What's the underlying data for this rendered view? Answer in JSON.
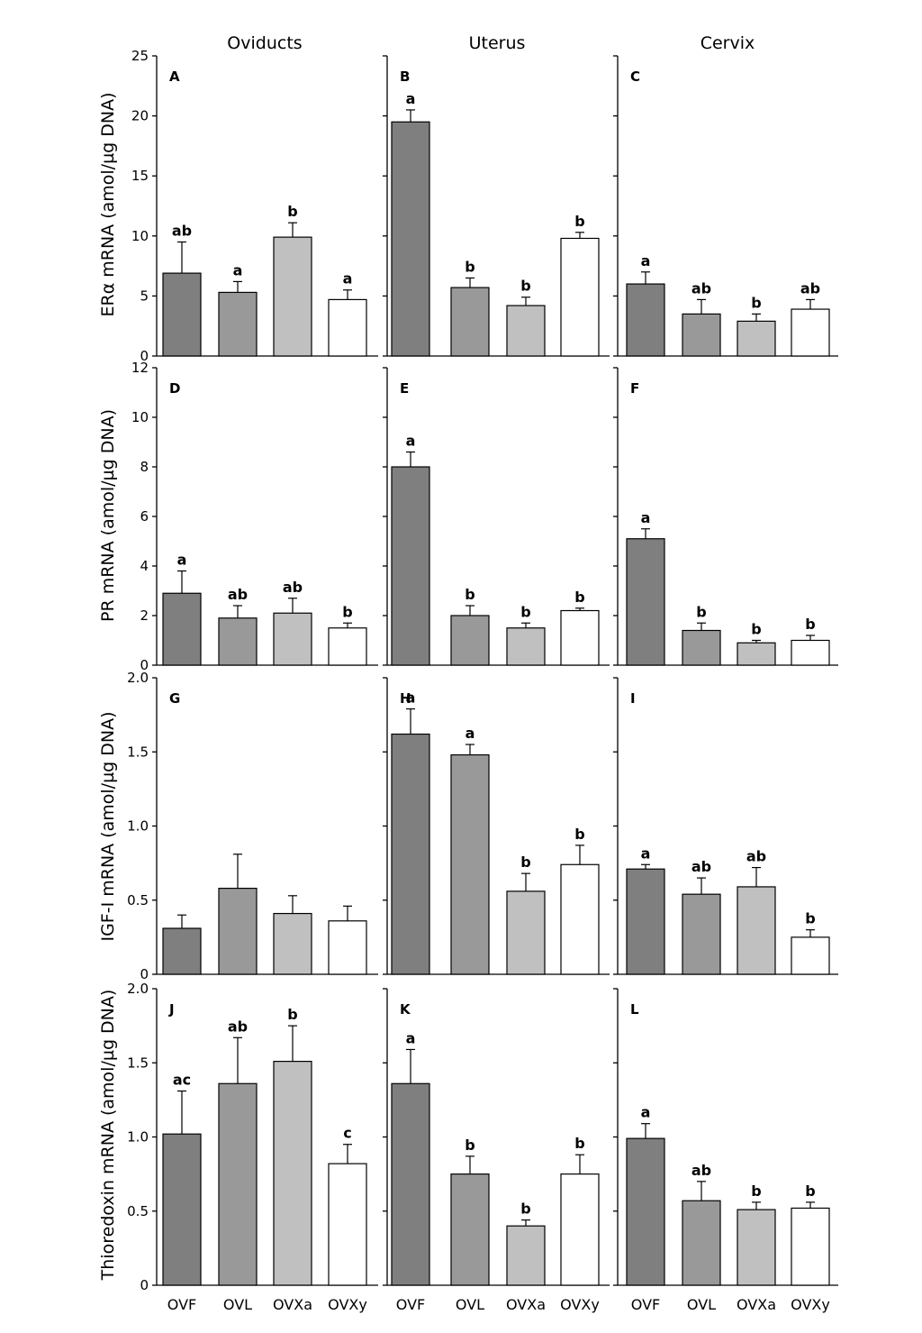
{
  "columns": [
    "Oviducts",
    "Uterus",
    "Cervix"
  ],
  "group_colors": [
    "#7f7f7f",
    "#999999",
    "#c0c0c0",
    "#ffffff"
  ],
  "chart_data": [
    {
      "type": "bar",
      "row_label": "ERα mRNA (amol/µg DNA)",
      "ylim": [
        0,
        25
      ],
      "yticks": [
        "0",
        "5",
        "10",
        "15",
        "20",
        "25"
      ],
      "ytick_values": [
        0,
        5,
        10,
        15,
        20,
        25
      ],
      "categories": [
        "OVF",
        "OVL",
        "OVXa",
        "OVXy"
      ],
      "panels": [
        {
          "panel": "A",
          "column": "Oviducts",
          "values": [
            6.9,
            5.3,
            9.9,
            4.7
          ],
          "errors": [
            2.6,
            0.9,
            1.2,
            0.8
          ],
          "labels": [
            "ab",
            "a",
            "b",
            "a"
          ]
        },
        {
          "panel": "B",
          "column": "Uterus",
          "values": [
            19.5,
            5.7,
            4.2,
            9.8
          ],
          "errors": [
            1.0,
            0.8,
            0.7,
            0.5
          ],
          "labels": [
            "a",
            "b",
            "b",
            "b"
          ]
        },
        {
          "panel": "C",
          "column": "Cervix",
          "values": [
            6.0,
            3.5,
            2.9,
            3.9
          ],
          "errors": [
            1.0,
            1.2,
            0.6,
            0.8
          ],
          "labels": [
            "a",
            "ab",
            "b",
            "ab"
          ]
        }
      ]
    },
    {
      "type": "bar",
      "row_label": "PR mRNA (amol/µg DNA)",
      "ylim": [
        0,
        12
      ],
      "yticks": [
        "0",
        "2",
        "4",
        "6",
        "8",
        "10",
        "12"
      ],
      "ytick_values": [
        0,
        2,
        4,
        6,
        8,
        10,
        12
      ],
      "categories": [
        "OVF",
        "OVL",
        "OVXa",
        "OVXy"
      ],
      "panels": [
        {
          "panel": "D",
          "column": "Oviducts",
          "values": [
            2.9,
            1.9,
            2.1,
            1.5
          ],
          "errors": [
            0.9,
            0.5,
            0.6,
            0.2
          ],
          "labels": [
            "a",
            "ab",
            "ab",
            "b"
          ]
        },
        {
          "panel": "E",
          "column": "Uterus",
          "values": [
            8.0,
            2.0,
            1.5,
            2.2
          ],
          "errors": [
            0.6,
            0.4,
            0.2,
            0.1
          ],
          "labels": [
            "a",
            "b",
            "b",
            "b"
          ]
        },
        {
          "panel": "F",
          "column": "Cervix",
          "values": [
            5.1,
            1.4,
            0.9,
            1.0
          ],
          "errors": [
            0.4,
            0.3,
            0.1,
            0.2
          ],
          "labels": [
            "a",
            "b",
            "b",
            "b"
          ]
        }
      ]
    },
    {
      "type": "bar",
      "row_label": "IGF-I mRNA (amol/µg DNA)",
      "ylim": [
        0,
        2.0
      ],
      "yticks": [
        "0",
        "0.5",
        "1.0",
        "1.5",
        "2.0"
      ],
      "ytick_values": [
        0,
        0.5,
        1.0,
        1.5,
        2.0
      ],
      "categories": [
        "OVF",
        "OVL",
        "OVXa",
        "OVXy"
      ],
      "panels": [
        {
          "panel": "G",
          "column": "Oviducts",
          "values": [
            0.31,
            0.58,
            0.41,
            0.36
          ],
          "errors": [
            0.09,
            0.23,
            0.12,
            0.1
          ],
          "labels": [
            "",
            "",
            "",
            ""
          ]
        },
        {
          "panel": "H",
          "column": "Uterus",
          "values": [
            1.62,
            1.48,
            0.56,
            0.74
          ],
          "errors": [
            0.17,
            0.07,
            0.12,
            0.13
          ],
          "labels": [
            "a",
            "a",
            "b",
            "b"
          ]
        },
        {
          "panel": "I",
          "column": "Cervix",
          "values": [
            0.71,
            0.54,
            0.59,
            0.25
          ],
          "errors": [
            0.03,
            0.11,
            0.13,
            0.05
          ],
          "labels": [
            "a",
            "ab",
            "ab",
            "b"
          ]
        }
      ]
    },
    {
      "type": "bar",
      "row_label": "Thioredoxin mRNA (amol/µg DNA)",
      "ylim": [
        0,
        2.0
      ],
      "yticks": [
        "0",
        "0.5",
        "1.0",
        "1.5",
        "2.0"
      ],
      "ytick_values": [
        0,
        0.5,
        1.0,
        1.5,
        2.0
      ],
      "categories": [
        "OVF",
        "OVL",
        "OVXa",
        "OVXy"
      ],
      "panels": [
        {
          "panel": "J",
          "column": "Oviducts",
          "values": [
            1.02,
            1.36,
            1.51,
            0.82
          ],
          "errors": [
            0.29,
            0.31,
            0.24,
            0.13
          ],
          "labels": [
            "ac",
            "ab",
            "b",
            "c"
          ]
        },
        {
          "panel": "K",
          "column": "Uterus",
          "values": [
            1.36,
            0.75,
            0.4,
            0.75
          ],
          "errors": [
            0.23,
            0.12,
            0.04,
            0.13
          ],
          "labels": [
            "a",
            "b",
            "b",
            "b"
          ]
        },
        {
          "panel": "L",
          "column": "Cervix",
          "values": [
            0.99,
            0.57,
            0.51,
            0.52
          ],
          "errors": [
            0.1,
            0.13,
            0.05,
            0.04
          ],
          "labels": [
            "a",
            "ab",
            "b",
            "b"
          ]
        }
      ]
    }
  ]
}
